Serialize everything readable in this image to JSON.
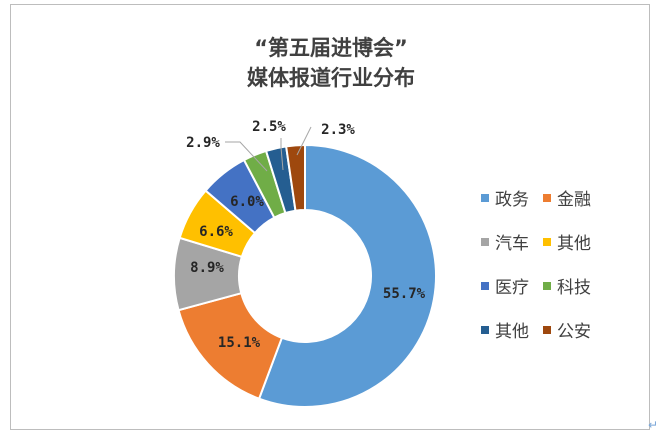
{
  "chart_data": {
    "type": "donut",
    "title": [
      "“第五届进博会”",
      "媒体报道行业分布"
    ],
    "categories": [
      "政务",
      "金融",
      "汽车",
      "其他",
      "医疗",
      "科技",
      "其他",
      "公安"
    ],
    "values": [
      55.7,
      15.1,
      8.9,
      6.6,
      6.0,
      2.9,
      2.5,
      2.3
    ],
    "labels": [
      "55.7%",
      "15.1%",
      "8.9%",
      "6.6%",
      "6.0%",
      "2.9%",
      "2.5%",
      "2.3%"
    ],
    "colors": [
      "#5b9bd5",
      "#ed7d31",
      "#a5a5a5",
      "#ffc000",
      "#4472c4",
      "#70ad47",
      "#255e91",
      "#9e480e"
    ],
    "legend_position": "right"
  },
  "misc": {
    "return_mark": "↵"
  }
}
